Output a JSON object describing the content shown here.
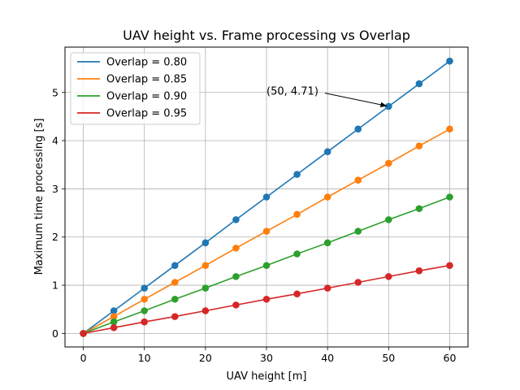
{
  "chart_data": {
    "type": "line",
    "title": "UAV height vs. Frame processing vs Overlap",
    "xlabel": "UAV height [m]",
    "ylabel": "Maximum time processing [s]",
    "xlim": [
      -3,
      63
    ],
    "ylim": [
      -0.28,
      5.94
    ],
    "xticks": [
      0,
      10,
      20,
      30,
      40,
      50,
      60
    ],
    "yticks": [
      0,
      1,
      2,
      3,
      4,
      5
    ],
    "grid": true,
    "legend_position": "top-left",
    "x": [
      0,
      5,
      10,
      15,
      20,
      25,
      30,
      35,
      40,
      45,
      50,
      55,
      60
    ],
    "series": [
      {
        "name": "Overlap = 0.80",
        "color": "#1f77b4",
        "values": [
          0,
          0.47,
          0.94,
          1.41,
          1.88,
          2.36,
          2.83,
          3.3,
          3.77,
          4.24,
          4.71,
          5.18,
          5.65
        ]
      },
      {
        "name": "Overlap = 0.85",
        "color": "#ff7f0e",
        "values": [
          0,
          0.35,
          0.71,
          1.06,
          1.41,
          1.77,
          2.12,
          2.47,
          2.83,
          3.18,
          3.53,
          3.89,
          4.24
        ]
      },
      {
        "name": "Overlap = 0.90",
        "color": "#2ca02c",
        "values": [
          0,
          0.24,
          0.47,
          0.71,
          0.94,
          1.18,
          1.41,
          1.65,
          1.88,
          2.12,
          2.36,
          2.59,
          2.83
        ]
      },
      {
        "name": "Overlap = 0.95",
        "color": "#d62728",
        "values": [
          0,
          0.12,
          0.24,
          0.35,
          0.47,
          0.59,
          0.71,
          0.82,
          0.94,
          1.06,
          1.18,
          1.3,
          1.41
        ]
      }
    ],
    "annotation": {
      "text": "(50, 4.71)",
      "point": [
        50,
        4.71
      ],
      "text_at": [
        30,
        5.02
      ]
    }
  }
}
